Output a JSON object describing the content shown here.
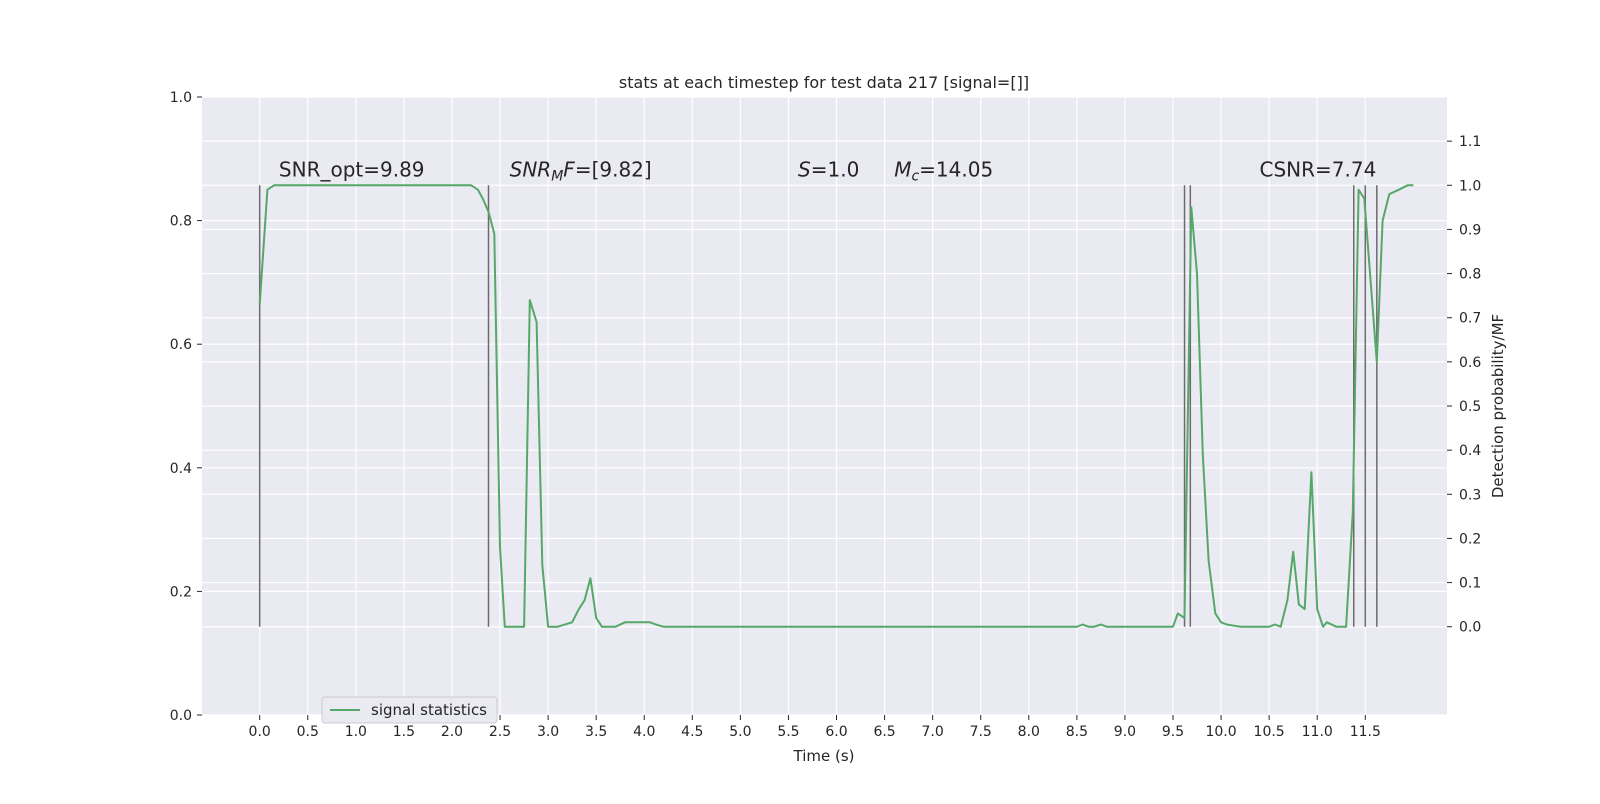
{
  "chart_data": {
    "type": "line",
    "title": "stats at each timestep for test data 217 [signal=[]]",
    "xlabel": "Time (s)",
    "ylabel_left": "",
    "ylabel_right": "Detection probability/MF",
    "xlim": [
      -0.6,
      12.35
    ],
    "ylim_left": [
      0.0,
      1.0
    ],
    "ylim_right": [
      -0.2,
      1.2
    ],
    "x_ticks": [
      "0.0",
      "0.5",
      "1.0",
      "1.5",
      "2.0",
      "2.5",
      "3.0",
      "3.5",
      "4.0",
      "4.5",
      "5.0",
      "5.5",
      "6.0",
      "6.5",
      "7.0",
      "7.5",
      "8.0",
      "8.5",
      "9.0",
      "9.5",
      "10.0",
      "10.5",
      "11.0",
      "11.5"
    ],
    "y_left_ticks": [
      "0.0",
      "0.2",
      "0.4",
      "0.6",
      "0.8",
      "1.0"
    ],
    "y_right_ticks": [
      "0.0",
      "0.1",
      "0.2",
      "0.3",
      "0.4",
      "0.5",
      "0.6",
      "0.7",
      "0.8",
      "0.9",
      "1.0",
      "1.1"
    ],
    "grid": true,
    "legend_placement": "lower-left",
    "background": "#eaeaf2",
    "series": [
      {
        "name": "signal statistics",
        "axis": "right",
        "color": "#55a868",
        "x": [
          0.0,
          0.08,
          0.15,
          0.3,
          0.5,
          1.0,
          1.5,
          2.0,
          2.2,
          2.27,
          2.32,
          2.38,
          2.44,
          2.5,
          2.55,
          2.62,
          2.68,
          2.75,
          2.81,
          2.88,
          2.94,
          3.0,
          3.1,
          3.25,
          3.32,
          3.38,
          3.44,
          3.5,
          3.56,
          3.62,
          3.7,
          3.8,
          3.9,
          4.0,
          4.06,
          4.12,
          4.2,
          4.3,
          5.0,
          6.0,
          7.0,
          8.0,
          8.5,
          8.56,
          8.62,
          8.68,
          8.75,
          8.81,
          8.9,
          9.0,
          9.2,
          9.4,
          9.5,
          9.55,
          9.62,
          9.69,
          9.75,
          9.81,
          9.87,
          9.94,
          10.0,
          10.06,
          10.2,
          10.4,
          10.5,
          10.56,
          10.62,
          10.69,
          10.75,
          10.81,
          10.87,
          10.94,
          11.0,
          11.06,
          11.1,
          11.2,
          11.3,
          11.37,
          11.43,
          11.49,
          11.62,
          11.68,
          11.75,
          11.85,
          11.94,
          12.0
        ],
        "y": [
          0.73,
          0.99,
          1.0,
          1.0,
          1.0,
          1.0,
          1.0,
          1.0,
          1.0,
          0.99,
          0.97,
          0.94,
          0.89,
          0.18,
          0.0,
          0.0,
          0.0,
          0.0,
          0.74,
          0.69,
          0.14,
          0.0,
          0.0,
          0.01,
          0.04,
          0.06,
          0.11,
          0.02,
          0.0,
          0.0,
          0.0,
          0.01,
          0.01,
          0.01,
          0.01,
          0.005,
          0.0,
          0.0,
          0.0,
          0.0,
          0.0,
          0.0,
          0.0,
          0.005,
          0.0,
          0.0,
          0.005,
          0.0,
          0.0,
          0.0,
          0.0,
          0.0,
          0.0,
          0.03,
          0.02,
          0.95,
          0.8,
          0.39,
          0.15,
          0.03,
          0.01,
          0.005,
          0.0,
          0.0,
          0.0,
          0.005,
          0.0,
          0.06,
          0.17,
          0.05,
          0.04,
          0.35,
          0.04,
          0.0,
          0.01,
          0.0,
          0.0,
          0.26,
          0.99,
          0.97,
          0.6,
          0.92,
          0.98,
          0.99,
          1.0,
          1.0
        ]
      }
    ],
    "vlines": [
      0.0,
      2.38,
      9.62,
      9.68,
      11.38,
      11.5,
      11.62
    ],
    "annotations": [
      {
        "text": "SNR_opt=9.89",
        "x": 0.2
      },
      {
        "text": "SNR_MF=[9.82]",
        "x": 2.6
      },
      {
        "text": "S=1.0",
        "x": 5.6
      },
      {
        "text": "M_c=14.05",
        "x": 6.6
      },
      {
        "text": "CSNR=7.74",
        "x": 10.4
      }
    ]
  }
}
